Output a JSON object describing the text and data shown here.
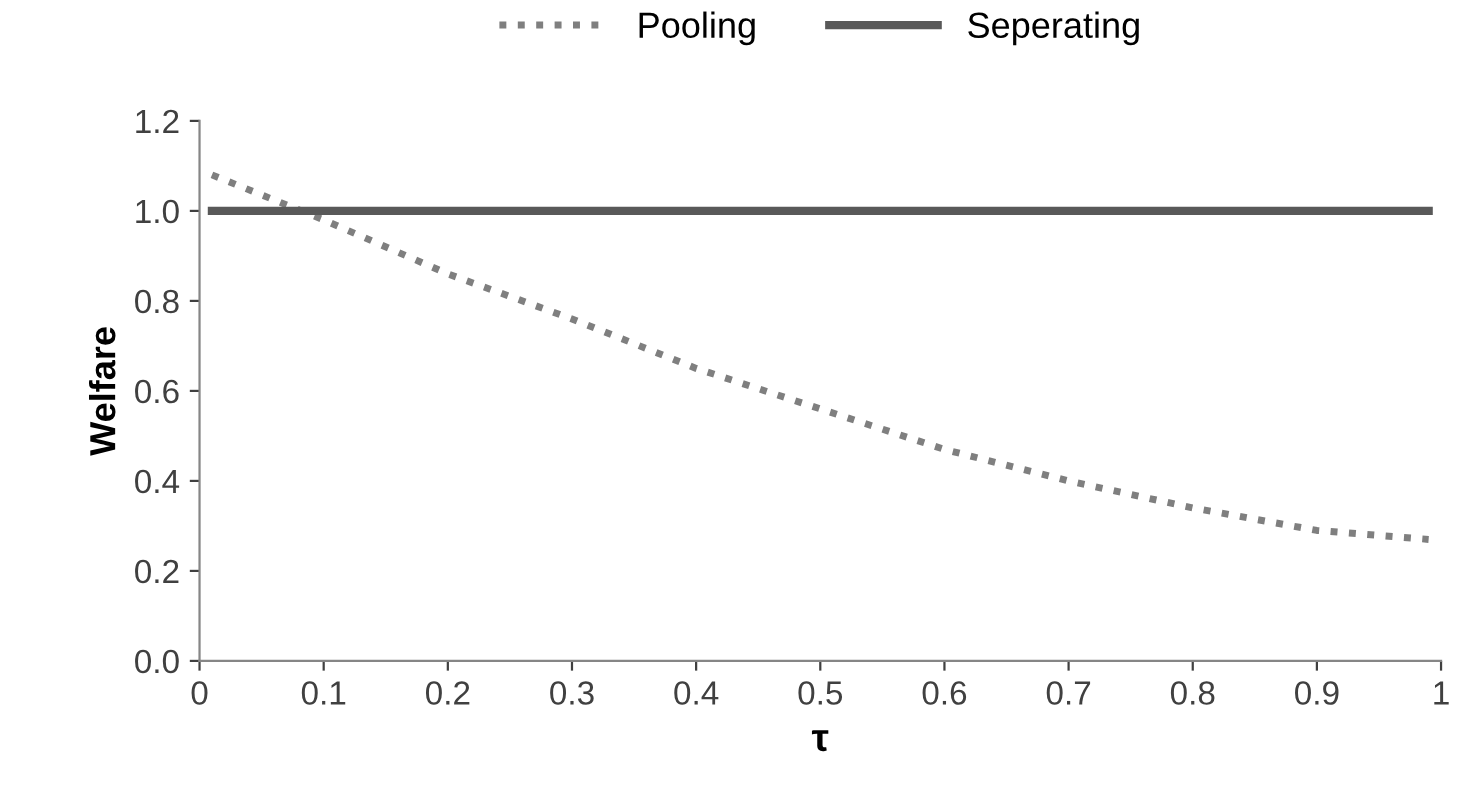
{
  "chart_data": {
    "type": "line",
    "xlabel": "τ",
    "ylabel": "Welfare",
    "x": [
      0.01,
      0.1,
      0.2,
      0.3,
      0.4,
      0.5,
      0.6,
      0.7,
      0.8,
      0.9,
      0.99
    ],
    "series": [
      {
        "name": "Pooling",
        "color": "#7f7f7f",
        "line_style": "dotted",
        "values": [
          1.08,
          0.98,
          0.86,
          0.76,
          0.65,
          0.56,
          0.47,
          0.4,
          0.34,
          0.29,
          0.27
        ]
      },
      {
        "name": "Seperating",
        "color": "#595959",
        "line_style": "solid",
        "values": [
          1.0,
          1.0,
          1.0,
          1.0,
          1.0,
          1.0,
          1.0,
          1.0,
          1.0,
          1.0,
          1.0
        ]
      }
    ],
    "xlim": [
      0,
      1
    ],
    "xticks": [
      0,
      0.1,
      0.2,
      0.3,
      0.4,
      0.5,
      0.6,
      0.7,
      0.8,
      0.9,
      1
    ],
    "ylim": [
      0,
      1.2
    ],
    "yticks": [
      {
        "value": 0,
        "label": "0.0"
      },
      0.2,
      0.4,
      0.6,
      0.8,
      {
        "value": 1,
        "label": "1.0"
      },
      1.2
    ],
    "grid": false,
    "legend": "top",
    "marker": "none"
  }
}
